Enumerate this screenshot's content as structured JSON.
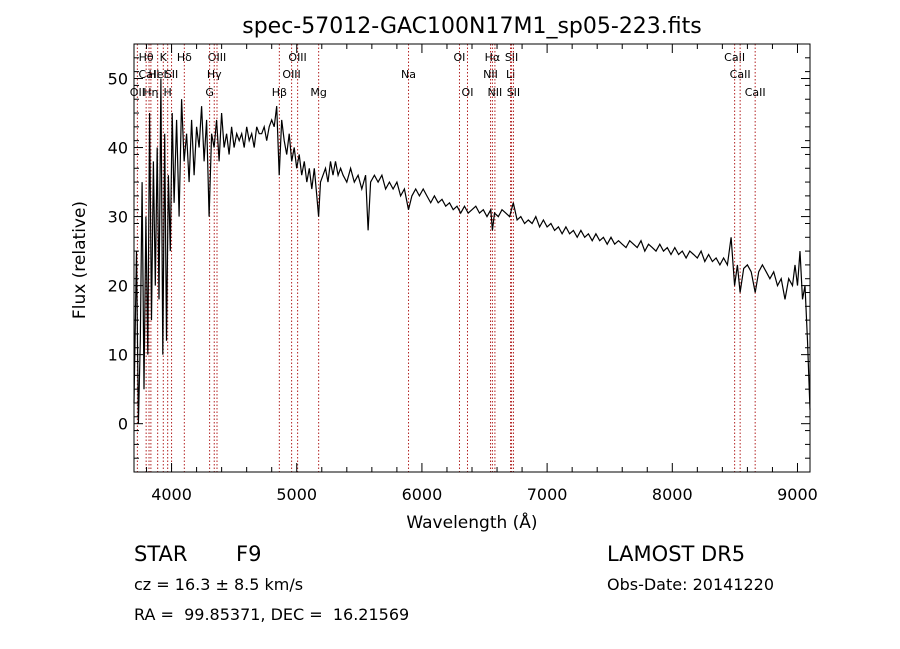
{
  "chart_data": {
    "type": "line",
    "title": "spec-57012-GAC100N17M1_sp05-223.fits",
    "xlabel": "Wavelength (Å)",
    "ylabel": "Flux (relative)",
    "xlim": [
      3700,
      9100
    ],
    "ylim": [
      -7,
      55
    ],
    "xticks": [
      4000,
      5000,
      6000,
      7000,
      8000,
      9000
    ],
    "yticks": [
      0,
      10,
      20,
      30,
      40,
      50
    ],
    "grid": false,
    "line_color": "#000000",
    "marker_color": "#b22222",
    "spectral_lines": [
      {
        "label": "Hθ",
        "wavelength": 3797,
        "row": 1
      },
      {
        "label": "CaII",
        "wavelength": 3820,
        "row": 2
      },
      {
        "label": "OII",
        "wavelength": 3727,
        "row": 3
      },
      {
        "label": "HeI",
        "wavelength": 3889,
        "row": 2
      },
      {
        "label": "Hη",
        "wavelength": 3835,
        "row": 3
      },
      {
        "label": "K",
        "wavelength": 3934,
        "row": 1
      },
      {
        "label": "H",
        "wavelength": 3969,
        "row": 3
      },
      {
        "label": "SII",
        "wavelength": 4000,
        "row": 2
      },
      {
        "label": "Hδ",
        "wavelength": 4102,
        "row": 1
      },
      {
        "label": "OIII",
        "wavelength": 4363,
        "row": 1
      },
      {
        "label": "Hγ",
        "wavelength": 4341,
        "row": 2
      },
      {
        "label": "G",
        "wavelength": 4304,
        "row": 3
      },
      {
        "label": "Hβ",
        "wavelength": 4861,
        "row": 3
      },
      {
        "label": "OIII",
        "wavelength": 4959,
        "row": 2
      },
      {
        "label": "OIII",
        "wavelength": 5007,
        "row": 1
      },
      {
        "label": "Mg",
        "wavelength": 5175,
        "row": 3
      },
      {
        "label": "Na",
        "wavelength": 5893,
        "row": 2
      },
      {
        "label": "OI",
        "wavelength": 6300,
        "row": 1
      },
      {
        "label": "OI",
        "wavelength": 6364,
        "row": 3
      },
      {
        "label": "Hα",
        "wavelength": 6563,
        "row": 1
      },
      {
        "label": "NII",
        "wavelength": 6548,
        "row": 2
      },
      {
        "label": "NII",
        "wavelength": 6583,
        "row": 3
      },
      {
        "label": "SII",
        "wavelength": 6716,
        "row": 1
      },
      {
        "label": "Li",
        "wavelength": 6708,
        "row": 2
      },
      {
        "label": "SII",
        "wavelength": 6731,
        "row": 3
      },
      {
        "label": "CaII",
        "wavelength": 8498,
        "row": 1
      },
      {
        "label": "CaII",
        "wavelength": 8542,
        "row": 2
      },
      {
        "label": "CaII",
        "wavelength": 8662,
        "row": 3
      }
    ],
    "series": [
      {
        "points": [
          [
            3700,
            3
          ],
          [
            3720,
            25
          ],
          [
            3735,
            0
          ],
          [
            3750,
            12
          ],
          [
            3765,
            35
          ],
          [
            3780,
            5
          ],
          [
            3795,
            30
          ],
          [
            3810,
            10
          ],
          [
            3825,
            45
          ],
          [
            3840,
            15
          ],
          [
            3855,
            38
          ],
          [
            3870,
            20
          ],
          [
            3885,
            40
          ],
          [
            3900,
            18
          ],
          [
            3915,
            50
          ],
          [
            3930,
            10
          ],
          [
            3945,
            42
          ],
          [
            3960,
            12
          ],
          [
            3975,
            36
          ],
          [
            3990,
            25
          ],
          [
            4005,
            45
          ],
          [
            4020,
            32
          ],
          [
            4040,
            44
          ],
          [
            4060,
            30
          ],
          [
            4080,
            47
          ],
          [
            4100,
            38
          ],
          [
            4120,
            42
          ],
          [
            4140,
            35
          ],
          [
            4160,
            44
          ],
          [
            4180,
            36
          ],
          [
            4200,
            43
          ],
          [
            4220,
            40
          ],
          [
            4240,
            46
          ],
          [
            4260,
            38
          ],
          [
            4280,
            44
          ],
          [
            4300,
            30
          ],
          [
            4320,
            42
          ],
          [
            4340,
            40
          ],
          [
            4360,
            44
          ],
          [
            4380,
            38
          ],
          [
            4400,
            45
          ],
          [
            4420,
            40
          ],
          [
            4440,
            42
          ],
          [
            4460,
            39
          ],
          [
            4480,
            43
          ],
          [
            4500,
            40
          ],
          [
            4520,
            42
          ],
          [
            4540,
            41
          ],
          [
            4560,
            42
          ],
          [
            4580,
            40
          ],
          [
            4600,
            43
          ],
          [
            4620,
            41
          ],
          [
            4640,
            42
          ],
          [
            4660,
            40
          ],
          [
            4680,
            43
          ],
          [
            4700,
            42
          ],
          [
            4720,
            42
          ],
          [
            4740,
            43
          ],
          [
            4760,
            41
          ],
          [
            4780,
            43
          ],
          [
            4800,
            44
          ],
          [
            4820,
            43
          ],
          [
            4840,
            46
          ],
          [
            4860,
            36
          ],
          [
            4880,
            44
          ],
          [
            4900,
            41
          ],
          [
            4920,
            39
          ],
          [
            4940,
            42
          ],
          [
            4960,
            38
          ],
          [
            4980,
            40
          ],
          [
            5000,
            37
          ],
          [
            5020,
            39
          ],
          [
            5040,
            36
          ],
          [
            5060,
            38
          ],
          [
            5080,
            35
          ],
          [
            5100,
            37
          ],
          [
            5120,
            34
          ],
          [
            5140,
            37
          ],
          [
            5160,
            33
          ],
          [
            5175,
            30
          ],
          [
            5190,
            35
          ],
          [
            5210,
            36
          ],
          [
            5230,
            37
          ],
          [
            5250,
            35
          ],
          [
            5270,
            38
          ],
          [
            5290,
            36
          ],
          [
            5310,
            38
          ],
          [
            5330,
            36
          ],
          [
            5350,
            37
          ],
          [
            5370,
            36
          ],
          [
            5400,
            35
          ],
          [
            5430,
            37
          ],
          [
            5460,
            35
          ],
          [
            5490,
            36
          ],
          [
            5520,
            34
          ],
          [
            5550,
            36
          ],
          [
            5570,
            28
          ],
          [
            5590,
            35
          ],
          [
            5620,
            36
          ],
          [
            5650,
            35
          ],
          [
            5680,
            36
          ],
          [
            5710,
            34
          ],
          [
            5740,
            35
          ],
          [
            5770,
            34
          ],
          [
            5800,
            35
          ],
          [
            5830,
            33
          ],
          [
            5860,
            34
          ],
          [
            5893,
            31
          ],
          [
            5920,
            33
          ],
          [
            5950,
            34
          ],
          [
            5980,
            33
          ],
          [
            6010,
            34
          ],
          [
            6040,
            33
          ],
          [
            6070,
            32
          ],
          [
            6100,
            33
          ],
          [
            6130,
            32
          ],
          [
            6160,
            32.5
          ],
          [
            6190,
            31.5
          ],
          [
            6220,
            32
          ],
          [
            6250,
            31
          ],
          [
            6280,
            31.5
          ],
          [
            6310,
            30.5
          ],
          [
            6340,
            31.5
          ],
          [
            6370,
            30.5
          ],
          [
            6400,
            31
          ],
          [
            6430,
            31.5
          ],
          [
            6460,
            30.5
          ],
          [
            6490,
            31
          ],
          [
            6520,
            30
          ],
          [
            6550,
            31
          ],
          [
            6563,
            28
          ],
          [
            6580,
            30.5
          ],
          [
            6610,
            30
          ],
          [
            6640,
            31
          ],
          [
            6670,
            30.5
          ],
          [
            6700,
            30
          ],
          [
            6730,
            32
          ],
          [
            6760,
            29.5
          ],
          [
            6790,
            30
          ],
          [
            6820,
            29
          ],
          [
            6850,
            29.5
          ],
          [
            6880,
            29
          ],
          [
            6910,
            30
          ],
          [
            6940,
            28.5
          ],
          [
            6970,
            29.5
          ],
          [
            7000,
            28.5
          ],
          [
            7030,
            29
          ],
          [
            7060,
            28
          ],
          [
            7090,
            28.5
          ],
          [
            7120,
            27.5
          ],
          [
            7150,
            28.5
          ],
          [
            7180,
            27.5
          ],
          [
            7210,
            28
          ],
          [
            7240,
            27
          ],
          [
            7270,
            28
          ],
          [
            7300,
            27
          ],
          [
            7330,
            27.5
          ],
          [
            7360,
            26.5
          ],
          [
            7390,
            27.5
          ],
          [
            7420,
            26.5
          ],
          [
            7450,
            27
          ],
          [
            7480,
            26
          ],
          [
            7510,
            27
          ],
          [
            7540,
            26
          ],
          [
            7570,
            26.5
          ],
          [
            7600,
            26
          ],
          [
            7630,
            25.5
          ],
          [
            7660,
            26.5
          ],
          [
            7690,
            26
          ],
          [
            7720,
            25.5
          ],
          [
            7750,
            26.5
          ],
          [
            7780,
            25
          ],
          [
            7810,
            26
          ],
          [
            7840,
            25.5
          ],
          [
            7870,
            25
          ],
          [
            7900,
            26
          ],
          [
            7930,
            25
          ],
          [
            7960,
            25.5
          ],
          [
            7990,
            24.5
          ],
          [
            8020,
            25.5
          ],
          [
            8050,
            24.5
          ],
          [
            8080,
            25
          ],
          [
            8110,
            24
          ],
          [
            8140,
            25
          ],
          [
            8170,
            24.5
          ],
          [
            8200,
            24
          ],
          [
            8230,
            25
          ],
          [
            8260,
            23.5
          ],
          [
            8290,
            24.5
          ],
          [
            8320,
            23.5
          ],
          [
            8350,
            24
          ],
          [
            8380,
            23
          ],
          [
            8410,
            24
          ],
          [
            8440,
            23
          ],
          [
            8470,
            27
          ],
          [
            8498,
            20
          ],
          [
            8520,
            23
          ],
          [
            8542,
            19
          ],
          [
            8570,
            22.5
          ],
          [
            8600,
            23
          ],
          [
            8630,
            22
          ],
          [
            8662,
            19
          ],
          [
            8690,
            22
          ],
          [
            8720,
            23
          ],
          [
            8750,
            22
          ],
          [
            8780,
            21
          ],
          [
            8810,
            22
          ],
          [
            8840,
            20
          ],
          [
            8870,
            21
          ],
          [
            8900,
            18
          ],
          [
            8930,
            21
          ],
          [
            8960,
            20
          ],
          [
            8980,
            23
          ],
          [
            9000,
            20
          ],
          [
            9020,
            25
          ],
          [
            9040,
            18
          ],
          [
            9060,
            20
          ],
          [
            9080,
            12
          ],
          [
            9100,
            2
          ]
        ]
      }
    ]
  },
  "info": {
    "object_class": "STAR",
    "subclass": "F9",
    "survey": "LAMOST DR5",
    "redshift": "cz = 16.3 ± 8.5 km/s",
    "obs_date": "Obs-Date: 20141220",
    "coords": "RA =  99.85371, DEC =  16.21569"
  }
}
